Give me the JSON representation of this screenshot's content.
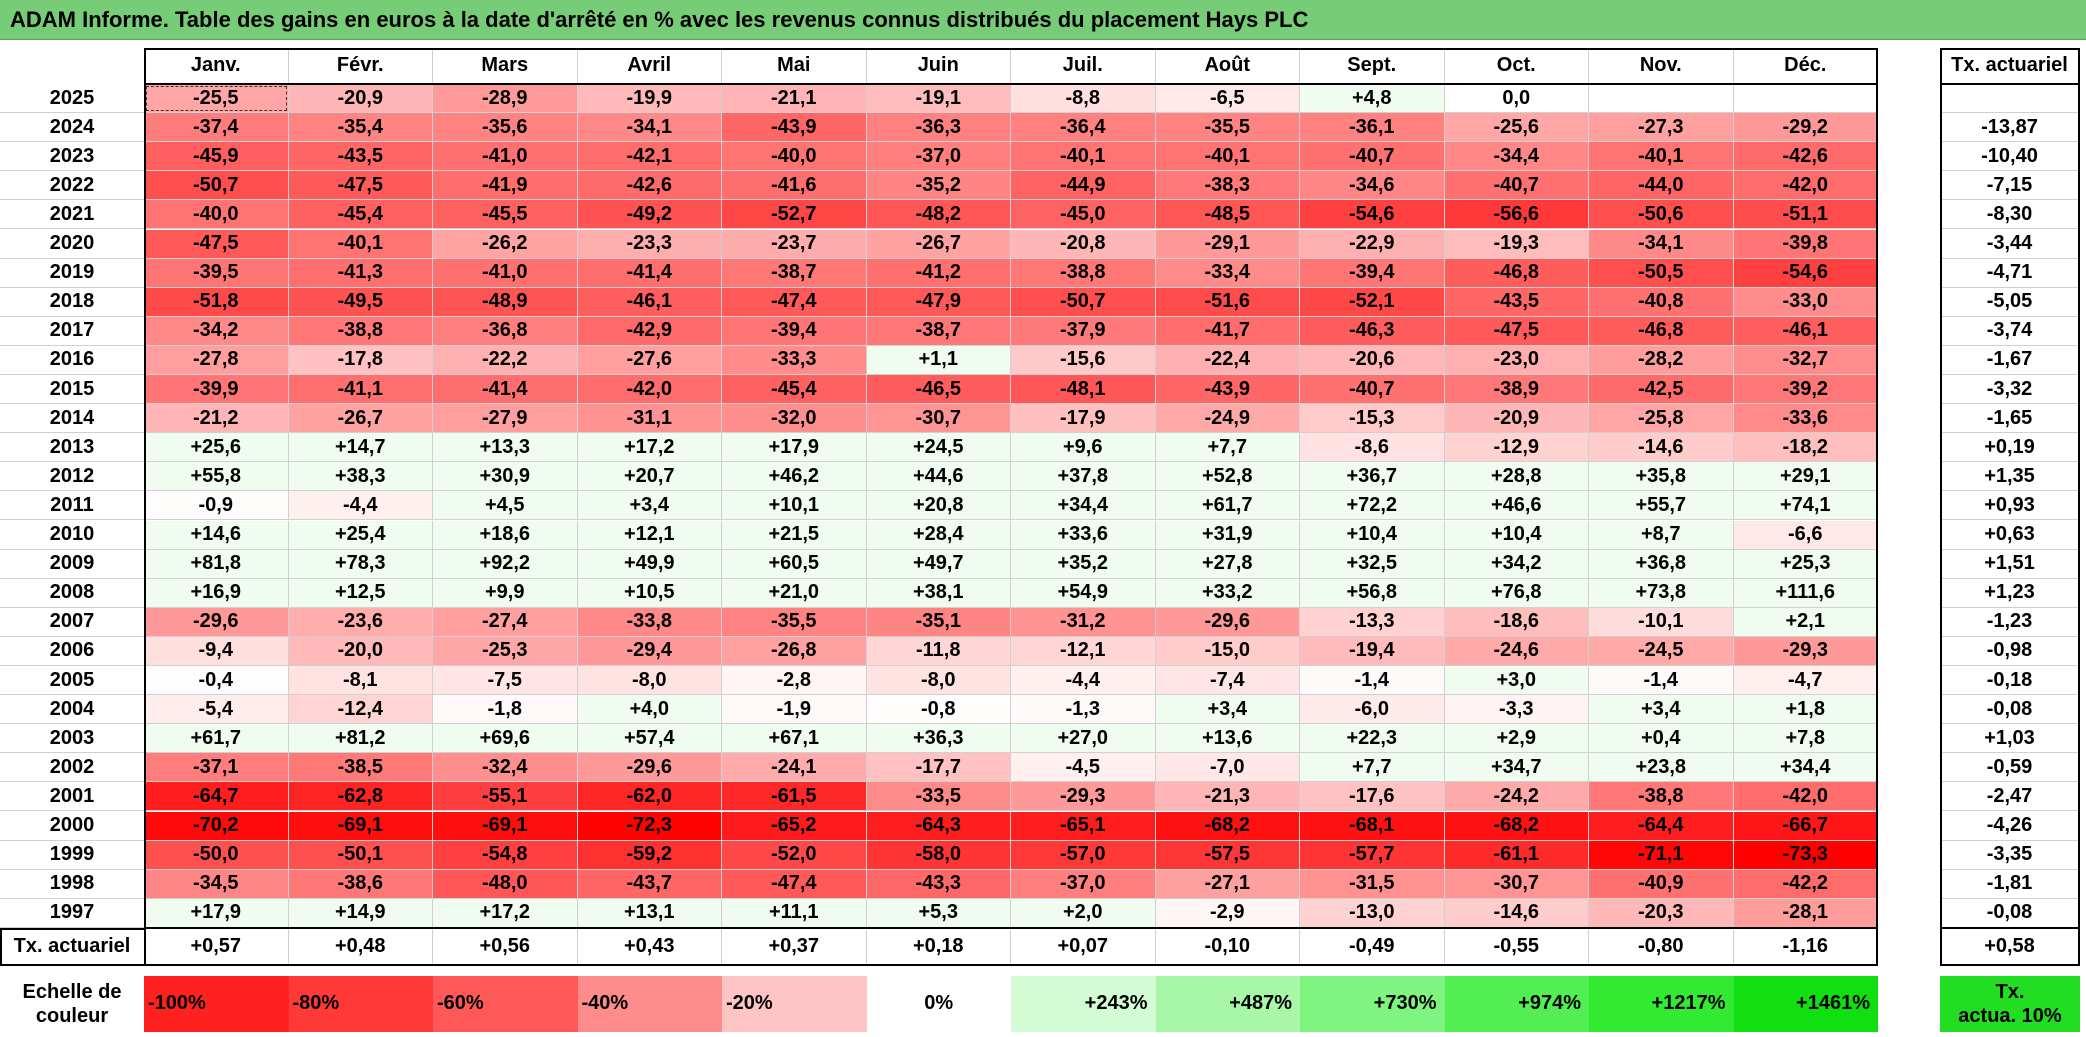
{
  "title": "ADAM Informe. Table des gains en euros à la date d'arrêté en % avec les revenus connus distribués du placement Hays PLC",
  "months": [
    "Janv.",
    "Févr.",
    "Mars",
    "Avril",
    "Mai",
    "Juin",
    "Juil.",
    "Août",
    "Sept.",
    "Oct.",
    "Nov.",
    "Déc."
  ],
  "annual_header": "Tx. actuariel",
  "rows": [
    {
      "year": "2025",
      "values": [
        "-25,5",
        "-20,9",
        "-28,9",
        "-19,9",
        "-21,1",
        "-19,1",
        "-8,8",
        "-6,5",
        "+4,8",
        "0,0",
        "",
        ""
      ],
      "annual": ""
    },
    {
      "year": "2024",
      "values": [
        "-37,4",
        "-35,4",
        "-35,6",
        "-34,1",
        "-43,9",
        "-36,3",
        "-36,4",
        "-35,5",
        "-36,1",
        "-25,6",
        "-27,3",
        "-29,2"
      ],
      "annual": "-13,87"
    },
    {
      "year": "2023",
      "values": [
        "-45,9",
        "-43,5",
        "-41,0",
        "-42,1",
        "-40,0",
        "-37,0",
        "-40,1",
        "-40,1",
        "-40,7",
        "-34,4",
        "-40,1",
        "-42,6"
      ],
      "annual": "-10,40"
    },
    {
      "year": "2022",
      "values": [
        "-50,7",
        "-47,5",
        "-41,9",
        "-42,6",
        "-41,6",
        "-35,2",
        "-44,9",
        "-38,3",
        "-34,6",
        "-40,7",
        "-44,0",
        "-42,0"
      ],
      "annual": "-7,15"
    },
    {
      "year": "2021",
      "values": [
        "-40,0",
        "-45,4",
        "-45,5",
        "-49,2",
        "-52,7",
        "-48,2",
        "-45,0",
        "-48,5",
        "-54,6",
        "-56,6",
        "-50,6",
        "-51,1"
      ],
      "annual": "-8,30"
    },
    {
      "year": "2020",
      "values": [
        "-47,5",
        "-40,1",
        "-26,2",
        "-23,3",
        "-23,7",
        "-26,7",
        "-20,8",
        "-29,1",
        "-22,9",
        "-19,3",
        "-34,1",
        "-39,8"
      ],
      "annual": "-3,44"
    },
    {
      "year": "2019",
      "values": [
        "-39,5",
        "-41,3",
        "-41,0",
        "-41,4",
        "-38,7",
        "-41,2",
        "-38,8",
        "-33,4",
        "-39,4",
        "-46,8",
        "-50,5",
        "-54,6"
      ],
      "annual": "-4,71"
    },
    {
      "year": "2018",
      "values": [
        "-51,8",
        "-49,5",
        "-48,9",
        "-46,1",
        "-47,4",
        "-47,9",
        "-50,7",
        "-51,6",
        "-52,1",
        "-43,5",
        "-40,8",
        "-33,0"
      ],
      "annual": "-5,05"
    },
    {
      "year": "2017",
      "values": [
        "-34,2",
        "-38,8",
        "-36,8",
        "-42,9",
        "-39,4",
        "-38,7",
        "-37,9",
        "-41,7",
        "-46,3",
        "-47,5",
        "-46,8",
        "-46,1"
      ],
      "annual": "-3,74"
    },
    {
      "year": "2016",
      "values": [
        "-27,8",
        "-17,8",
        "-22,2",
        "-27,6",
        "-33,3",
        "+1,1",
        "-15,6",
        "-22,4",
        "-20,6",
        "-23,0",
        "-28,2",
        "-32,7"
      ],
      "annual": "-1,67"
    },
    {
      "year": "2015",
      "values": [
        "-39,9",
        "-41,1",
        "-41,4",
        "-42,0",
        "-45,4",
        "-46,5",
        "-48,1",
        "-43,9",
        "-40,7",
        "-38,9",
        "-42,5",
        "-39,2"
      ],
      "annual": "-3,32"
    },
    {
      "year": "2014",
      "values": [
        "-21,2",
        "-26,7",
        "-27,9",
        "-31,1",
        "-32,0",
        "-30,7",
        "-17,9",
        "-24,9",
        "-15,3",
        "-20,9",
        "-25,8",
        "-33,6"
      ],
      "annual": "-1,65"
    },
    {
      "year": "2013",
      "values": [
        "+25,6",
        "+14,7",
        "+13,3",
        "+17,2",
        "+17,9",
        "+24,5",
        "+9,6",
        "+7,7",
        "-8,6",
        "-12,9",
        "-14,6",
        "-18,2"
      ],
      "annual": "+0,19"
    },
    {
      "year": "2012",
      "values": [
        "+55,8",
        "+38,3",
        "+30,9",
        "+20,7",
        "+46,2",
        "+44,6",
        "+37,8",
        "+52,8",
        "+36,7",
        "+28,8",
        "+35,8",
        "+29,1"
      ],
      "annual": "+1,35"
    },
    {
      "year": "2011",
      "values": [
        "-0,9",
        "-4,4",
        "+4,5",
        "+3,4",
        "+10,1",
        "+20,8",
        "+34,4",
        "+61,7",
        "+72,2",
        "+46,6",
        "+55,7",
        "+74,1"
      ],
      "annual": "+0,93"
    },
    {
      "year": "2010",
      "values": [
        "+14,6",
        "+25,4",
        "+18,6",
        "+12,1",
        "+21,5",
        "+28,4",
        "+33,6",
        "+31,9",
        "+10,4",
        "+10,4",
        "+8,7",
        "-6,6"
      ],
      "annual": "+0,63"
    },
    {
      "year": "2009",
      "values": [
        "+81,8",
        "+78,3",
        "+92,2",
        "+49,9",
        "+60,5",
        "+49,7",
        "+35,2",
        "+27,8",
        "+32,5",
        "+34,2",
        "+36,8",
        "+25,3"
      ],
      "annual": "+1,51"
    },
    {
      "year": "2008",
      "values": [
        "+16,9",
        "+12,5",
        "+9,9",
        "+10,5",
        "+21,0",
        "+38,1",
        "+54,9",
        "+33,2",
        "+56,8",
        "+76,8",
        "+73,8",
        "+111,6"
      ],
      "annual": "+1,23"
    },
    {
      "year": "2007",
      "values": [
        "-29,6",
        "-23,6",
        "-27,4",
        "-33,8",
        "-35,5",
        "-35,1",
        "-31,2",
        "-29,6",
        "-13,3",
        "-18,6",
        "-10,1",
        "+2,1"
      ],
      "annual": "-1,23"
    },
    {
      "year": "2006",
      "values": [
        "-9,4",
        "-20,0",
        "-25,3",
        "-29,4",
        "-26,8",
        "-11,8",
        "-12,1",
        "-15,0",
        "-19,4",
        "-24,6",
        "-24,5",
        "-29,3"
      ],
      "annual": "-0,98"
    },
    {
      "year": "2005",
      "values": [
        "-0,4",
        "-8,1",
        "-7,5",
        "-8,0",
        "-2,8",
        "-8,0",
        "-4,4",
        "-7,4",
        "-1,4",
        "+3,0",
        "-1,4",
        "-4,7"
      ],
      "annual": "-0,18"
    },
    {
      "year": "2004",
      "values": [
        "-5,4",
        "-12,4",
        "-1,8",
        "+4,0",
        "-1,9",
        "-0,8",
        "-1,3",
        "+3,4",
        "-6,0",
        "-3,3",
        "+3,4",
        "+1,8"
      ],
      "annual": "-0,08"
    },
    {
      "year": "2003",
      "values": [
        "+61,7",
        "+81,2",
        "+69,6",
        "+57,4",
        "+67,1",
        "+36,3",
        "+27,0",
        "+13,6",
        "+22,3",
        "+2,9",
        "+0,4",
        "+7,8"
      ],
      "annual": "+1,03"
    },
    {
      "year": "2002",
      "values": [
        "-37,1",
        "-38,5",
        "-32,4",
        "-29,6",
        "-24,1",
        "-17,7",
        "-4,5",
        "-7,0",
        "+7,7",
        "+34,7",
        "+23,8",
        "+34,4"
      ],
      "annual": "-0,59"
    },
    {
      "year": "2001",
      "values": [
        "-64,7",
        "-62,8",
        "-55,1",
        "-62,0",
        "-61,5",
        "-33,5",
        "-29,3",
        "-21,3",
        "-17,6",
        "-24,2",
        "-38,8",
        "-42,0"
      ],
      "annual": "-2,47"
    },
    {
      "year": "2000",
      "values": [
        "-70,2",
        "-69,1",
        "-69,1",
        "-72,3",
        "-65,2",
        "-64,3",
        "-65,1",
        "-68,2",
        "-68,1",
        "-68,2",
        "-64,4",
        "-66,7"
      ],
      "annual": "-4,26"
    },
    {
      "year": "1999",
      "values": [
        "-50,0",
        "-50,1",
        "-54,8",
        "-59,2",
        "-52,0",
        "-58,0",
        "-57,0",
        "-57,5",
        "-57,7",
        "-61,1",
        "-71,1",
        "-73,3"
      ],
      "annual": "-3,35"
    },
    {
      "year": "1998",
      "values": [
        "-34,5",
        "-38,6",
        "-48,0",
        "-43,7",
        "-47,4",
        "-43,3",
        "-37,0",
        "-27,1",
        "-31,5",
        "-30,7",
        "-40,9",
        "-42,2"
      ],
      "annual": "-1,81"
    },
    {
      "year": "1997",
      "values": [
        "+17,9",
        "+14,9",
        "+17,2",
        "+13,1",
        "+11,1",
        "+5,3",
        "+2,0",
        "-2,9",
        "-13,0",
        "-14,6",
        "-20,3",
        "-28,1"
      ],
      "annual": "-0,08"
    }
  ],
  "footer": {
    "label": "Tx. actuariel",
    "values": [
      "+0,57",
      "+0,48",
      "+0,56",
      "+0,43",
      "+0,37",
      "+0,18",
      "+0,07",
      "-0,10",
      "-0,49",
      "-0,55",
      "-0,80",
      "-1,16"
    ],
    "annual": "+0,58"
  },
  "legend": {
    "label_line1": "Echelle de",
    "label_line2": "couleur",
    "items": [
      {
        "label": "-100%",
        "color": "#ff2020"
      },
      {
        "label": "-80%",
        "color": "#ff3838"
      },
      {
        "label": "-60%",
        "color": "#ff5858"
      },
      {
        "label": "-40%",
        "color": "#ff8c8c"
      },
      {
        "label": "-20%",
        "color": "#ffc4c4"
      },
      {
        "label": "0%",
        "color": "#ffffff"
      },
      {
        "label": "+243%",
        "color": "#d4fcd4"
      },
      {
        "label": "+487%",
        "color": "#a8f7a8"
      },
      {
        "label": "+730%",
        "color": "#80f480"
      },
      {
        "label": "+974%",
        "color": "#52ee52"
      },
      {
        "label": "+1217%",
        "color": "#33ea33"
      },
      {
        "label": "+1461%",
        "color": "#10e010"
      }
    ],
    "target_line1": "Tx.",
    "target_line2": "actua. 10%",
    "target_color": "#22dd22"
  },
  "colors": {
    "title_bg": "#77cc77",
    "negative_max": "#ff0000",
    "positive_tint": "#eefcee",
    "zero": "#ffffff"
  }
}
